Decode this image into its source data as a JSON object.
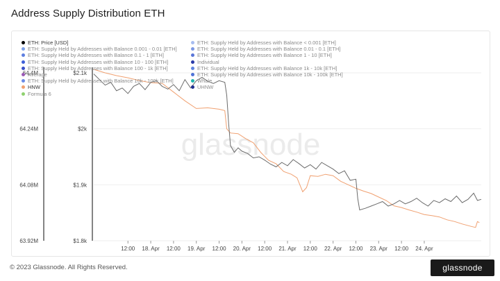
{
  "header": {
    "title": "Address Supply Distribution ETH"
  },
  "footer": {
    "copyright": "© 2023 Glassnode. All Rights Reserved.",
    "brand": "glassnode"
  },
  "watermark": "glassnode",
  "colors": {
    "price": "#6b6b6b",
    "hnw": "#f0a070",
    "grid": "#eeeeee",
    "axis": "#333333"
  },
  "legend": {
    "left": [
      {
        "label": "ETH: Price [USD]",
        "color": "#000000",
        "active": true
      },
      {
        "label": "ETH: Supply Held by Addresses with Balance 0.001 - 0.01 [ETH]",
        "color": "#7ea1e8",
        "active": false
      },
      {
        "label": "ETH: Supply Held by Addresses with Balance 0.1 - 1 [ETH]",
        "color": "#5e7fe0",
        "active": false
      },
      {
        "label": "ETH: Supply Held by Addresses with Balance 10 - 100 [ETH]",
        "color": "#3e5fd8",
        "active": false
      },
      {
        "label": "ETH: Supply Held by Addresses with Balance 100 - 1k [ETH]",
        "color": "#3a4fc8",
        "active": false
      },
      {
        "label": "Average",
        "color": "#9b59b6",
        "active": false
      },
      {
        "label": "ETH: Supply Held by Addresses with Balance 10k - 100k [ETH]",
        "color": "#6a8ae6",
        "active": false
      },
      {
        "label": "HNW",
        "color": "#f0a070",
        "active": true
      },
      {
        "label": "Formula 6",
        "color": "#8fd16f",
        "active": false
      }
    ],
    "right": [
      {
        "label": "ETH: Supply Held by Addresses with Balance < 0.001 [ETH]",
        "color": "#a7bdf0",
        "active": false
      },
      {
        "label": "ETH: Supply Held by Addresses with Balance 0.01 - 0.1 [ETH]",
        "color": "#7c98e4",
        "active": false
      },
      {
        "label": "ETH: Supply Held by Addresses with Balance 1 - 10 [ETH]",
        "color": "#5a76d8",
        "active": false
      },
      {
        "label": "Individual",
        "color": "#2a3aa8",
        "active": false
      },
      {
        "label": "ETH: Supply Held by Addresses with Balance 1k - 10k [ETH]",
        "color": "#5f84e0",
        "active": false
      },
      {
        "label": "ETH: Supply Held by Addresses with Balance 10k - 100k [ETH]",
        "color": "#4e72d8",
        "active": false
      },
      {
        "label": "Whale",
        "color": "#1fb5ad",
        "active": false
      },
      {
        "label": "UHNW",
        "color": "#1f2f8f",
        "active": false
      }
    ]
  },
  "chart_data": {
    "type": "line",
    "title": "Address Supply Distribution ETH",
    "x_tick_labels": [
      "12:00",
      "18. Apr",
      "12:00",
      "19. Apr",
      "12:00",
      "20. Apr",
      "12:00",
      "21. Apr",
      "12:00",
      "22. Apr",
      "12:00",
      "23. Apr",
      "12:00",
      "24. Apr"
    ],
    "x_range_hours": [
      -30,
      174
    ],
    "y_left": {
      "ticks": [
        "64.4M",
        "64.24M",
        "64.08M",
        "63.92M"
      ],
      "range": [
        63920000,
        64400000
      ]
    },
    "y_right": {
      "ticks": [
        "$2.1k",
        "$2k",
        "$1.9k",
        "$1.8k"
      ],
      "range": [
        1800,
        2100
      ]
    },
    "grid": true,
    "legend_position": "top-left",
    "series": [
      {
        "name": "ETH: Price [USD]",
        "axis": "right",
        "color": "#6b6b6b",
        "points": [
          [
            -30,
            2098
          ],
          [
            -27,
            2088
          ],
          [
            -24,
            2078
          ],
          [
            -21,
            2083
          ],
          [
            -18,
            2068
          ],
          [
            -15,
            2073
          ],
          [
            -12,
            2063
          ],
          [
            -9,
            2076
          ],
          [
            -6,
            2081
          ],
          [
            -3,
            2070
          ],
          [
            0,
            2083
          ],
          [
            3,
            2086
          ],
          [
            6,
            2076
          ],
          [
            9,
            2071
          ],
          [
            12,
            2079
          ],
          [
            15,
            2068
          ],
          [
            18,
            2088
          ],
          [
            21,
            2073
          ],
          [
            24,
            2086
          ],
          [
            27,
            2092
          ],
          [
            30,
            2085
          ],
          [
            33,
            2081
          ],
          [
            36,
            2086
          ],
          [
            39,
            2083
          ],
          [
            40,
            2060
          ],
          [
            41,
            2010
          ],
          [
            42,
            1970
          ],
          [
            44,
            1958
          ],
          [
            46,
            1966
          ],
          [
            48,
            1960
          ],
          [
            51,
            1956
          ],
          [
            54,
            1948
          ],
          [
            57,
            1950
          ],
          [
            60,
            1944
          ],
          [
            63,
            1937
          ],
          [
            66,
            1932
          ],
          [
            69,
            1940
          ],
          [
            72,
            1934
          ],
          [
            75,
            1945
          ],
          [
            78,
            1938
          ],
          [
            81,
            1930
          ],
          [
            84,
            1936
          ],
          [
            87,
            1928
          ],
          [
            90,
            1940
          ],
          [
            93,
            1934
          ],
          [
            96,
            1928
          ],
          [
            99,
            1920
          ],
          [
            102,
            1925
          ],
          [
            105,
            1908
          ],
          [
            108,
            1910
          ],
          [
            109,
            1875
          ],
          [
            110,
            1855
          ],
          [
            113,
            1858
          ],
          [
            116,
            1862
          ],
          [
            119,
            1866
          ],
          [
            122,
            1870
          ],
          [
            125,
            1862
          ],
          [
            128,
            1866
          ],
          [
            131,
            1872
          ],
          [
            134,
            1866
          ],
          [
            137,
            1870
          ],
          [
            140,
            1876
          ],
          [
            143,
            1868
          ],
          [
            146,
            1862
          ],
          [
            149,
            1872
          ],
          [
            152,
            1868
          ],
          [
            155,
            1875
          ],
          [
            158,
            1870
          ],
          [
            161,
            1880
          ],
          [
            164,
            1868
          ],
          [
            167,
            1874
          ],
          [
            170,
            1885
          ],
          [
            172,
            1872
          ],
          [
            174,
            1874
          ]
        ]
      },
      {
        "name": "HNW",
        "axis": "left",
        "color": "#f0a070",
        "points": [
          [
            -30,
            64410000
          ],
          [
            -24,
            64400000
          ],
          [
            -18,
            64392000
          ],
          [
            -12,
            64386000
          ],
          [
            -6,
            64378000
          ],
          [
            0,
            64372000
          ],
          [
            6,
            64370000
          ],
          [
            12,
            64345000
          ],
          [
            18,
            64320000
          ],
          [
            24,
            64298000
          ],
          [
            30,
            64300000
          ],
          [
            36,
            64296000
          ],
          [
            39,
            64292000
          ],
          [
            40,
            64240000
          ],
          [
            42,
            64228000
          ],
          [
            46,
            64226000
          ],
          [
            50,
            64212000
          ],
          [
            54,
            64200000
          ],
          [
            58,
            64172000
          ],
          [
            62,
            64150000
          ],
          [
            66,
            64140000
          ],
          [
            70,
            64118000
          ],
          [
            74,
            64110000
          ],
          [
            77,
            64100000
          ],
          [
            80,
            64060000
          ],
          [
            82,
            64072000
          ],
          [
            84,
            64106000
          ],
          [
            88,
            64104000
          ],
          [
            92,
            64110000
          ],
          [
            96,
            64106000
          ],
          [
            100,
            64090000
          ],
          [
            104,
            64080000
          ],
          [
            108,
            64070000
          ],
          [
            112,
            64062000
          ],
          [
            116,
            64055000
          ],
          [
            120,
            64045000
          ],
          [
            124,
            64035000
          ],
          [
            128,
            64020000
          ],
          [
            132,
            64015000
          ],
          [
            136,
            64008000
          ],
          [
            140,
            64002000
          ],
          [
            144,
            63995000
          ],
          [
            148,
            63992000
          ],
          [
            152,
            63988000
          ],
          [
            156,
            63980000
          ],
          [
            160,
            63975000
          ],
          [
            164,
            63968000
          ],
          [
            168,
            63962000
          ],
          [
            171,
            63958000
          ],
          [
            172,
            63975000
          ],
          [
            173,
            63972000
          ]
        ]
      }
    ]
  }
}
